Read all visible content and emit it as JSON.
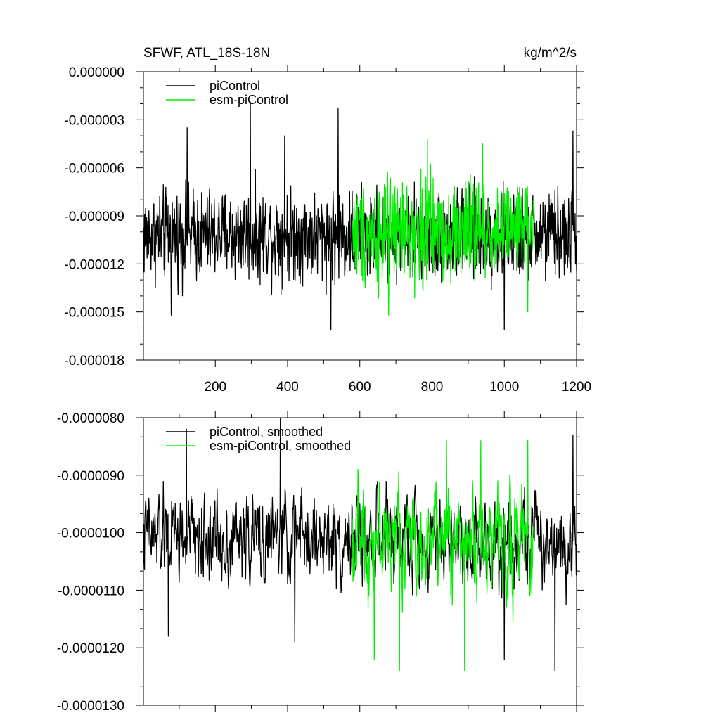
{
  "header": {
    "title": "SFWF, ATL_18S-18N",
    "units": "kg/m^2/s"
  },
  "colors": {
    "piControl": "#000000",
    "esm_piControl": "#00ee00",
    "axes": "#000000",
    "background": "#ffffff"
  },
  "chart_data": [
    {
      "type": "line",
      "title": "SFWF, ATL_18S-18N",
      "xlabel": "",
      "ylabel": "",
      "xlim": [
        1,
        1200
      ],
      "ylim": [
        -1.8e-05,
        0.0
      ],
      "x_ticks": [
        200,
        400,
        600,
        800,
        1000,
        1200
      ],
      "x_tick_labels": [
        "200",
        "400",
        "600",
        "800",
        "1000",
        "1200"
      ],
      "y_ticks": [
        0.0,
        -3e-06,
        -6e-06,
        -9e-06,
        -1.2e-05,
        -1.5e-05,
        -1.8e-05
      ],
      "y_tick_labels": [
        "0.000000",
        "-0.000003",
        "-0.000006",
        "-0.000009",
        "-0.000012",
        "-0.000015",
        "-0.000018"
      ],
      "grid": false,
      "legend": "top-left",
      "series": [
        {
          "name": "piControl",
          "color": "#000000",
          "x_range": [
            1,
            1200
          ],
          "mean": -1.02e-05,
          "spread": 1.4e-06,
          "peaks": [
            [
              122,
              -3.5e-06
            ],
            [
              297,
              -1.9e-06
            ],
            [
              392,
              -4e-06
            ],
            [
              540,
              -2.3e-06
            ],
            [
              1190,
              -3.7e-06
            ],
            [
              520,
              -1.61e-05
            ],
            [
              1000,
              -1.61e-05
            ],
            [
              78,
              -1.52e-05
            ]
          ]
        },
        {
          "name": "esm-piControl",
          "color": "#00ee00",
          "x_range": [
            580,
            1080
          ],
          "mean": -1e-05,
          "spread": 1.6e-06,
          "peaks": [
            [
              787,
              -4.2e-06
            ],
            [
              940,
              -4.5e-06
            ],
            [
              680,
              -1.52e-05
            ],
            [
              1065,
              -1.5e-05
            ]
          ]
        }
      ]
    },
    {
      "type": "line",
      "title": "",
      "xlabel": "",
      "ylabel": "",
      "xlim": [
        1,
        1200
      ],
      "ylim": [
        -1.3e-05,
        -8e-06
      ],
      "x_ticks": [
        200,
        400,
        600,
        800,
        1000,
        1200
      ],
      "x_tick_labels": [],
      "y_ticks": [
        -8e-06,
        -9e-06,
        -1e-05,
        -1.1e-05,
        -1.2e-05,
        -1.3e-05
      ],
      "y_tick_labels": [
        "-0.0000080",
        "-0.0000090",
        "-0.0000100",
        "-0.0000110",
        "-0.0000120",
        "-0.0000130"
      ],
      "grid": false,
      "legend": "top-left",
      "series": [
        {
          "name": "piControl, smoothed",
          "color": "#000000",
          "x_range": [
            1,
            1200
          ],
          "mean": -1.01e-05,
          "spread": 7e-07,
          "peaks": [
            [
              120,
              -8.2e-06
            ],
            [
              380,
              -8e-06
            ],
            [
              1190,
              -8.3e-06
            ],
            [
              70,
              -1.18e-05
            ],
            [
              420,
              -1.19e-05
            ],
            [
              1140,
              -1.24e-05
            ],
            [
              1000,
              -1.22e-05
            ]
          ]
        },
        {
          "name": "esm-piControl, smoothed",
          "color": "#00ee00",
          "x_range": [
            580,
            1080
          ],
          "mean": -1.01e-05,
          "spread": 8e-07,
          "peaks": [
            [
              840,
              -8.4e-06
            ],
            [
              935,
              -8.4e-06
            ],
            [
              1065,
              -8.4e-06
            ],
            [
              640,
              -1.22e-05
            ],
            [
              710,
              -1.24e-05
            ],
            [
              890,
              -1.24e-05
            ]
          ]
        }
      ]
    }
  ]
}
